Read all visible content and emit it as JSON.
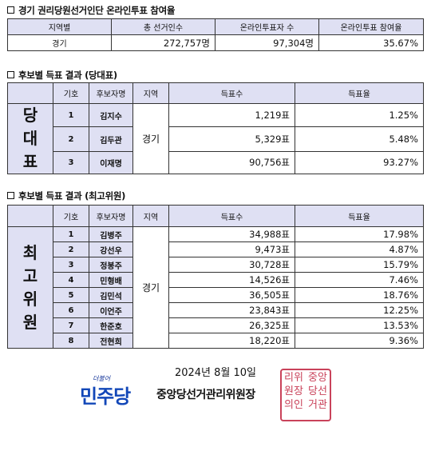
{
  "section1": {
    "title": "경기 권리당원선거인단 온라인투표 참여율",
    "headers": [
      "지역별",
      "총 선거인수",
      "온라인투표자 수",
      "온라인투표 참여율"
    ],
    "row": {
      "region": "경기",
      "total_voters": "272,757명",
      "online_voters": "97,304명",
      "rate": "35.67%"
    }
  },
  "section2": {
    "title": "후보별 득표 결과 (당대표)",
    "side_label": [
      "당",
      "대",
      "표"
    ],
    "headers": [
      "기호",
      "후보자명",
      "지역",
      "득표수",
      "득표율"
    ],
    "region": "경기",
    "rows": [
      {
        "no": "1",
        "name": "김지수",
        "votes": "1,219표",
        "rate": "1.25%"
      },
      {
        "no": "2",
        "name": "김두관",
        "votes": "5,329표",
        "rate": "5.48%"
      },
      {
        "no": "3",
        "name": "이재명",
        "votes": "90,756표",
        "rate": "93.27%"
      }
    ]
  },
  "section3": {
    "title": "후보별 득표 결과 (최고위원)",
    "side_label": [
      "최",
      "고",
      "위",
      "원"
    ],
    "headers": [
      "기호",
      "후보자명",
      "지역",
      "득표수",
      "득표율"
    ],
    "region": "경기",
    "rows": [
      {
        "no": "1",
        "name": "김병주",
        "votes": "34,988표",
        "rate": "17.98%"
      },
      {
        "no": "2",
        "name": "강선우",
        "votes": "9,473표",
        "rate": "4.87%"
      },
      {
        "no": "3",
        "name": "정봉주",
        "votes": "30,728표",
        "rate": "15.79%"
      },
      {
        "no": "4",
        "name": "민형배",
        "votes": "14,526표",
        "rate": "7.46%"
      },
      {
        "no": "5",
        "name": "김민석",
        "votes": "36,505표",
        "rate": "18.76%"
      },
      {
        "no": "6",
        "name": "이언주",
        "votes": "23,843표",
        "rate": "12.25%"
      },
      {
        "no": "7",
        "name": "한준호",
        "votes": "26,325표",
        "rate": "13.53%"
      },
      {
        "no": "8",
        "name": "전현희",
        "votes": "18,220표",
        "rate": "9.36%"
      }
    ]
  },
  "footer": {
    "date": "2024년 8월 10일",
    "logo_small": "더불어",
    "logo_big": "민주당",
    "chair": "중앙당선거관리위원장",
    "seal_text": [
      "중앙",
      "당선",
      "거관",
      "리위",
      "원장",
      "의인"
    ]
  },
  "colors": {
    "header_bg": "#dfe0f3",
    "logo_blue": "#1247b8",
    "seal_red": "#c9425a"
  }
}
